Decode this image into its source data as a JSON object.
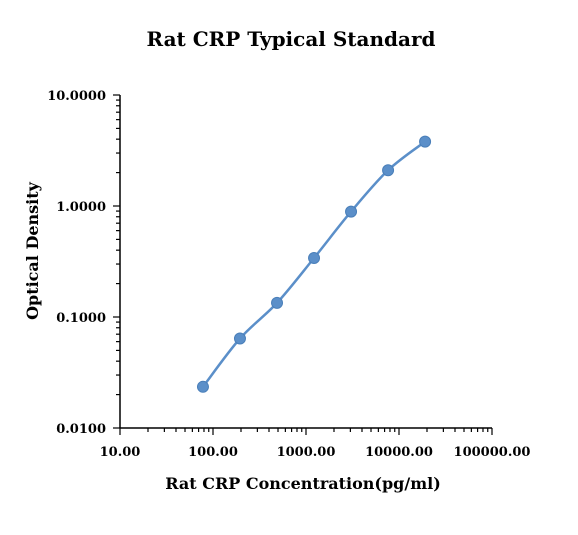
{
  "chart_data": {
    "type": "line",
    "title": "Rat CRP Typical Standard",
    "xlabel": "Rat CRP Concentration(pg/ml)",
    "ylabel": "Optical Density",
    "xscale": "log",
    "yscale": "log",
    "xlim": [
      10,
      100000
    ],
    "ylim": [
      0.01,
      10
    ],
    "x_tick_labels": [
      "10.00",
      "100.00",
      "1000.00",
      "10000.00",
      "100000.00"
    ],
    "y_tick_labels": [
      "0.0100",
      "0.1000",
      "1.0000",
      "10.0000"
    ],
    "grid": false,
    "series": [
      {
        "x": [
          78,
          195,
          488,
          1220,
          3050,
          7630,
          19070
        ],
        "y": [
          0.0235,
          0.064,
          0.134,
          0.34,
          0.89,
          2.1,
          3.8
        ]
      }
    ],
    "colors": {
      "series": "#5b8fc9"
    }
  }
}
